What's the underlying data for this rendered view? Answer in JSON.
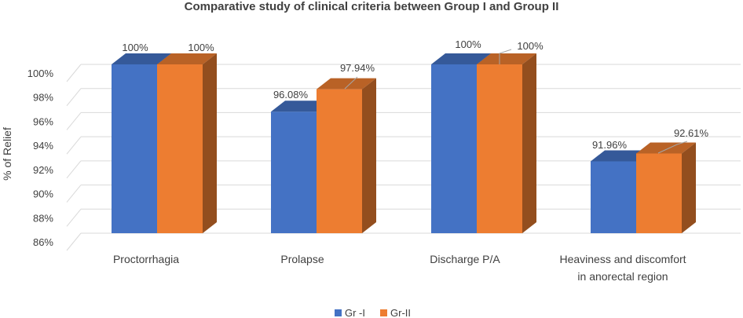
{
  "chart_data": {
    "type": "bar",
    "title": "Comparative study of clinical criteria between Group I and Group II",
    "ylabel": "% of  Relief",
    "xlabel": "",
    "ylim": [
      86,
      100
    ],
    "yticks": [
      "86%",
      "88%",
      "90%",
      "92%",
      "94%",
      "96%",
      "98%",
      "100%"
    ],
    "categories": [
      [
        "Proctorrhagia"
      ],
      [
        "Prolapse"
      ],
      [
        "Discharge P/A"
      ],
      [
        "Heaviness and discomfort",
        "in anorectal region"
      ]
    ],
    "series": [
      {
        "name": "Gr -I",
        "color": "#4472C4",
        "values": [
          100,
          96.08,
          100,
          91.96
        ],
        "labels": [
          "100%",
          "96.08%",
          "100%",
          "91.96%"
        ]
      },
      {
        "name": "Gr-II",
        "color": "#ED7D31",
        "values": [
          100,
          97.94,
          100,
          92.61
        ],
        "labels": [
          "100%",
          "97.94%",
          "100%",
          "92.61%"
        ]
      }
    ],
    "legend_position": "bottom",
    "grid": true
  }
}
